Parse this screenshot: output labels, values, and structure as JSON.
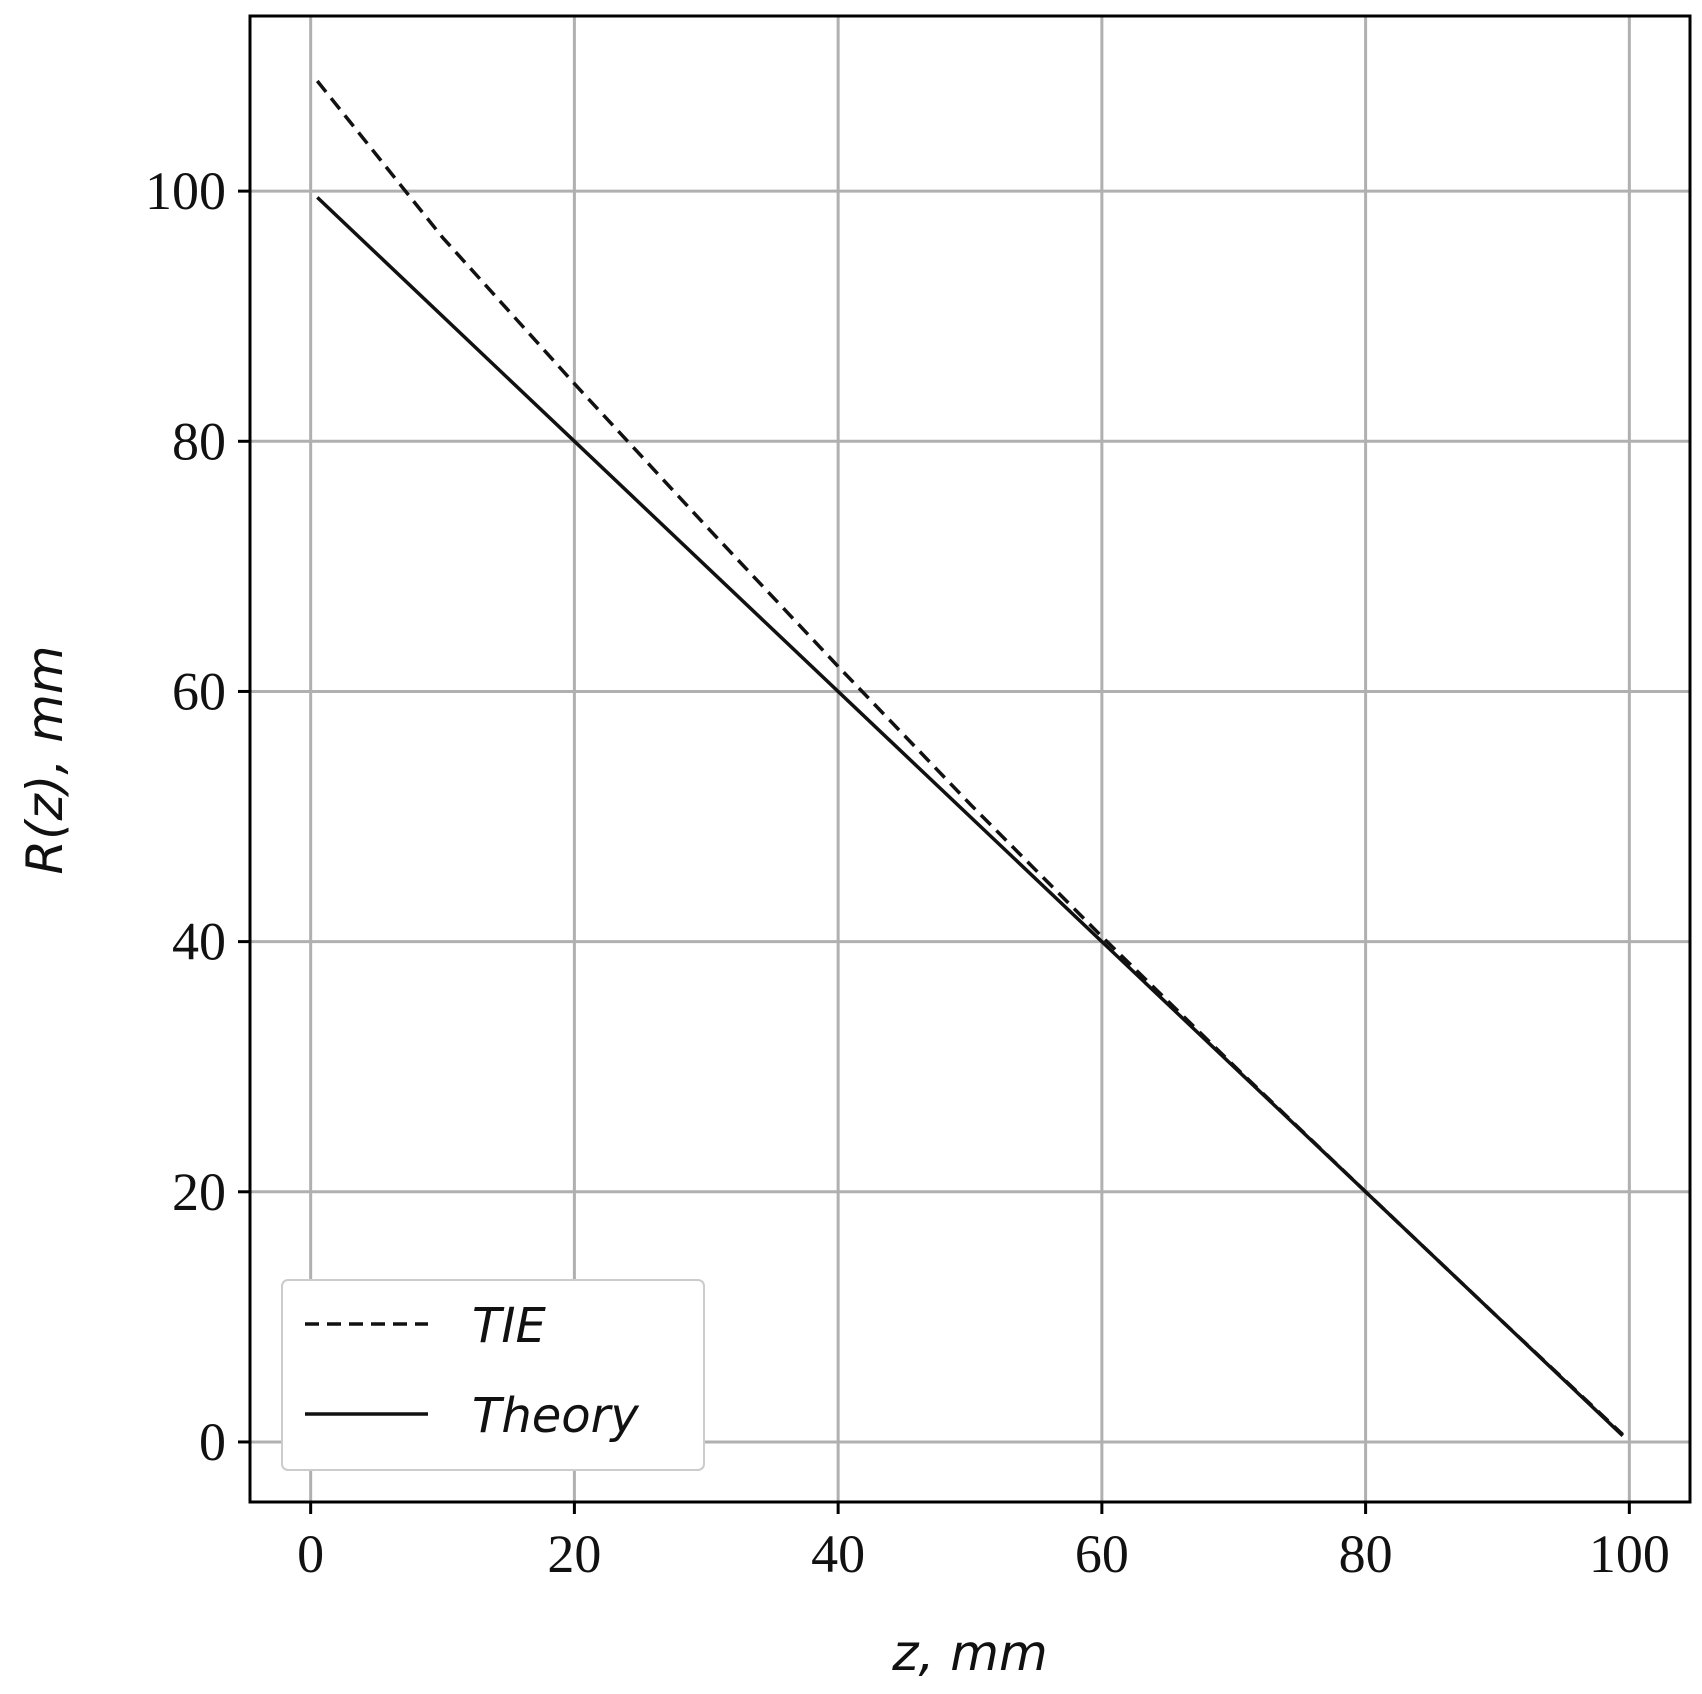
{
  "chart_data": {
    "type": "line",
    "xlabel": "z, mm",
    "ylabel": "R(z), mm",
    "xlim": [
      -4.6,
      104.6
    ],
    "ylim": [
      -4.8,
      114
    ],
    "x_ticks": [
      "0",
      "20",
      "40",
      "60",
      "80",
      "100"
    ],
    "y_ticks": [
      "0",
      "20",
      "40",
      "60",
      "80",
      "100"
    ],
    "grid": true,
    "legend_position": "lower-left",
    "colors": {
      "line": "#111111",
      "grid": "#b0b0b0",
      "frame": "#000000",
      "legend_border": "#cccccc"
    },
    "series": [
      {
        "name": "TIE",
        "style": "dashed",
        "x": [
          0.5,
          10,
          20,
          30,
          40,
          50,
          60,
          70,
          80,
          90,
          99.5
        ],
        "y": [
          108.8,
          96.3,
          84.6,
          73.2,
          62.0,
          51.0,
          40.4,
          30.1,
          20.0,
          10.0,
          0.6
        ]
      },
      {
        "name": "Theory",
        "style": "solid",
        "x": [
          0.5,
          99.5
        ],
        "y": [
          99.5,
          0.5
        ]
      }
    ]
  }
}
